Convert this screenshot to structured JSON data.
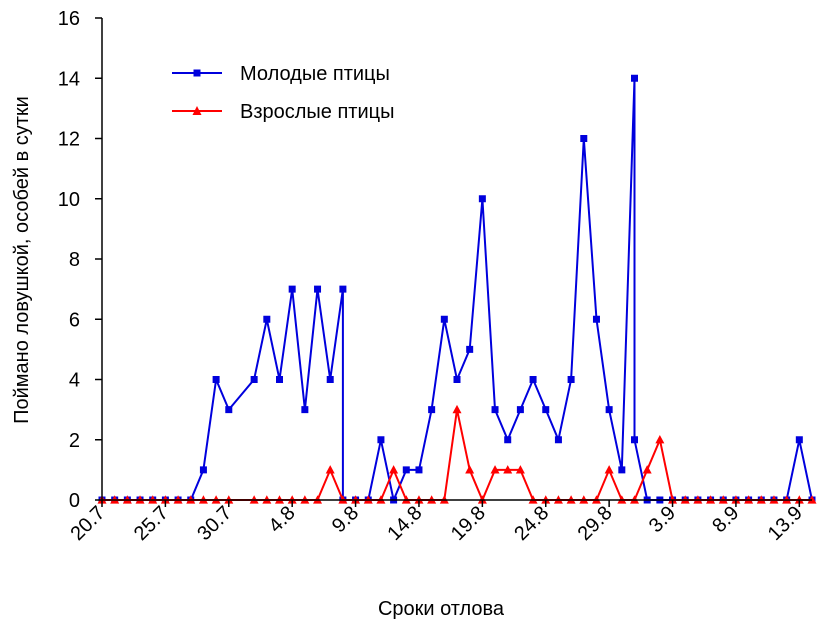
{
  "chart_data": {
    "type": "line",
    "xlabel": "Сроки отлова",
    "ylabel": "Поймано ловушкой, особей в сутки",
    "ylim": [
      0,
      16
    ],
    "yticks": [
      0,
      2,
      4,
      6,
      8,
      10,
      12,
      14,
      16
    ],
    "x_day_range": [
      0,
      56
    ],
    "xticks": [
      {
        "day": 0,
        "label": "20.7"
      },
      {
        "day": 5,
        "label": "25.7"
      },
      {
        "day": 10,
        "label": "30.7"
      },
      {
        "day": 15,
        "label": "4.8"
      },
      {
        "day": 20,
        "label": "9.8"
      },
      {
        "day": 25,
        "label": "14.8"
      },
      {
        "day": 30,
        "label": "19.8"
      },
      {
        "day": 35,
        "label": "24.8"
      },
      {
        "day": 40,
        "label": "29.8"
      },
      {
        "day": 45,
        "label": "3.9"
      },
      {
        "day": 50,
        "label": "8.9"
      },
      {
        "day": 55,
        "label": "13.9"
      }
    ],
    "legend_position": "top-left",
    "series": [
      {
        "name": "Молодые птицы",
        "color": "#0000dd",
        "marker": "square",
        "points": [
          [
            0,
            0
          ],
          [
            1,
            0
          ],
          [
            2,
            0
          ],
          [
            3,
            0
          ],
          [
            4,
            0
          ],
          [
            5,
            0
          ],
          [
            6,
            0
          ],
          [
            7,
            0
          ],
          [
            8,
            1
          ],
          [
            9,
            4
          ],
          [
            10,
            3
          ],
          [
            12,
            4
          ],
          [
            13,
            6
          ],
          [
            14,
            4
          ],
          [
            15,
            7
          ],
          [
            16,
            3
          ],
          [
            17,
            7
          ],
          [
            18,
            4
          ],
          [
            19,
            7
          ],
          [
            19,
            0
          ],
          [
            20,
            0
          ],
          [
            21,
            0
          ],
          [
            22,
            2
          ],
          [
            23,
            0
          ],
          [
            24,
            1
          ],
          [
            25,
            1
          ],
          [
            26,
            3
          ],
          [
            27,
            6
          ],
          [
            28,
            4
          ],
          [
            29,
            5
          ],
          [
            30,
            10
          ],
          [
            31,
            3
          ],
          [
            32,
            2
          ],
          [
            33,
            3
          ],
          [
            34,
            4
          ],
          [
            35,
            3
          ],
          [
            36,
            2
          ],
          [
            37,
            4
          ],
          [
            38,
            12
          ],
          [
            39,
            6
          ],
          [
            40,
            3
          ],
          [
            41,
            1
          ],
          [
            42,
            14
          ],
          [
            42,
            2
          ],
          [
            43,
            0
          ],
          [
            44,
            0
          ],
          [
            45,
            0
          ],
          [
            46,
            0
          ],
          [
            47,
            0
          ],
          [
            48,
            0
          ],
          [
            49,
            0
          ],
          [
            50,
            0
          ],
          [
            51,
            0
          ],
          [
            52,
            0
          ],
          [
            53,
            0
          ],
          [
            54,
            0
          ],
          [
            55,
            2
          ],
          [
            56,
            0
          ]
        ]
      },
      {
        "name": "Взрослые птицы",
        "color": "#ff0000",
        "marker": "triangle",
        "points": [
          [
            0,
            0
          ],
          [
            1,
            0
          ],
          [
            2,
            0
          ],
          [
            3,
            0
          ],
          [
            4,
            0
          ],
          [
            5,
            0
          ],
          [
            6,
            0
          ],
          [
            7,
            0
          ],
          [
            8,
            0
          ],
          [
            9,
            0
          ],
          [
            10,
            0
          ],
          [
            12,
            0
          ],
          [
            13,
            0
          ],
          [
            14,
            0
          ],
          [
            15,
            0
          ],
          [
            16,
            0
          ],
          [
            17,
            0
          ],
          [
            18,
            1
          ],
          [
            19,
            0
          ],
          [
            20,
            0
          ],
          [
            21,
            0
          ],
          [
            22,
            0
          ],
          [
            23,
            1
          ],
          [
            24,
            0
          ],
          [
            25,
            0
          ],
          [
            26,
            0
          ],
          [
            27,
            0
          ],
          [
            28,
            3
          ],
          [
            29,
            1
          ],
          [
            30,
            0
          ],
          [
            31,
            1
          ],
          [
            32,
            1
          ],
          [
            33,
            1
          ],
          [
            34,
            0
          ],
          [
            35,
            0
          ],
          [
            36,
            0
          ],
          [
            37,
            0
          ],
          [
            38,
            0
          ],
          [
            39,
            0
          ],
          [
            40,
            1
          ],
          [
            41,
            0
          ],
          [
            42,
            0
          ],
          [
            43,
            1
          ],
          [
            44,
            2
          ],
          [
            45,
            0
          ],
          [
            46,
            0
          ],
          [
            47,
            0
          ],
          [
            48,
            0
          ],
          [
            49,
            0
          ],
          [
            50,
            0
          ],
          [
            51,
            0
          ],
          [
            52,
            0
          ],
          [
            53,
            0
          ],
          [
            54,
            0
          ],
          [
            55,
            0
          ],
          [
            56,
            0
          ]
        ]
      }
    ]
  }
}
